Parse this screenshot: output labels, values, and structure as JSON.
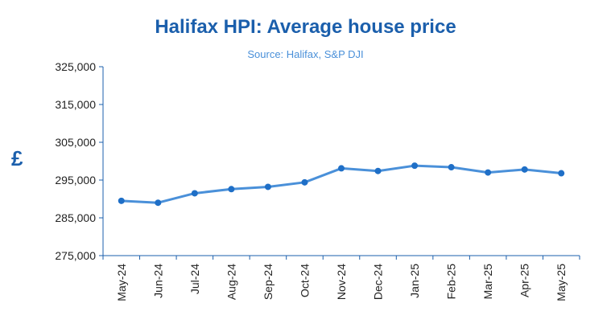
{
  "chart_data": {
    "type": "line",
    "title": "Halifax HPI: Average house price",
    "subtitle": "Source: Halifax,  S&P DJI",
    "ylabel": "£",
    "xlabel": "",
    "categories": [
      "May-24",
      "Jun-24",
      "Jul-24",
      "Aug-24",
      "Sep-24",
      "Oct-24",
      "Nov-24",
      "Dec-24",
      "Jan-25",
      "Feb-25",
      "Mar-25",
      "Apr-25",
      "May-25"
    ],
    "series": [
      {
        "values": [
          289500,
          289000,
          291500,
          292600,
          293200,
          294400,
          298100,
          297400,
          298800,
          298400,
          297000,
          297800,
          296800
        ]
      }
    ],
    "ylim": [
      275000,
      325000
    ],
    "yticks": [
      275000,
      285000,
      295000,
      305000,
      315000,
      325000
    ],
    "ytick_labels": [
      "275,000",
      "285,000",
      "295,000",
      "305,000",
      "315,000",
      "325,000"
    ],
    "grid": false,
    "legend": "none",
    "colors": {
      "line": "#4a90d9",
      "marker": "#1f6fc7",
      "axis": "#1b5fac",
      "title": "#1b5fac"
    }
  }
}
